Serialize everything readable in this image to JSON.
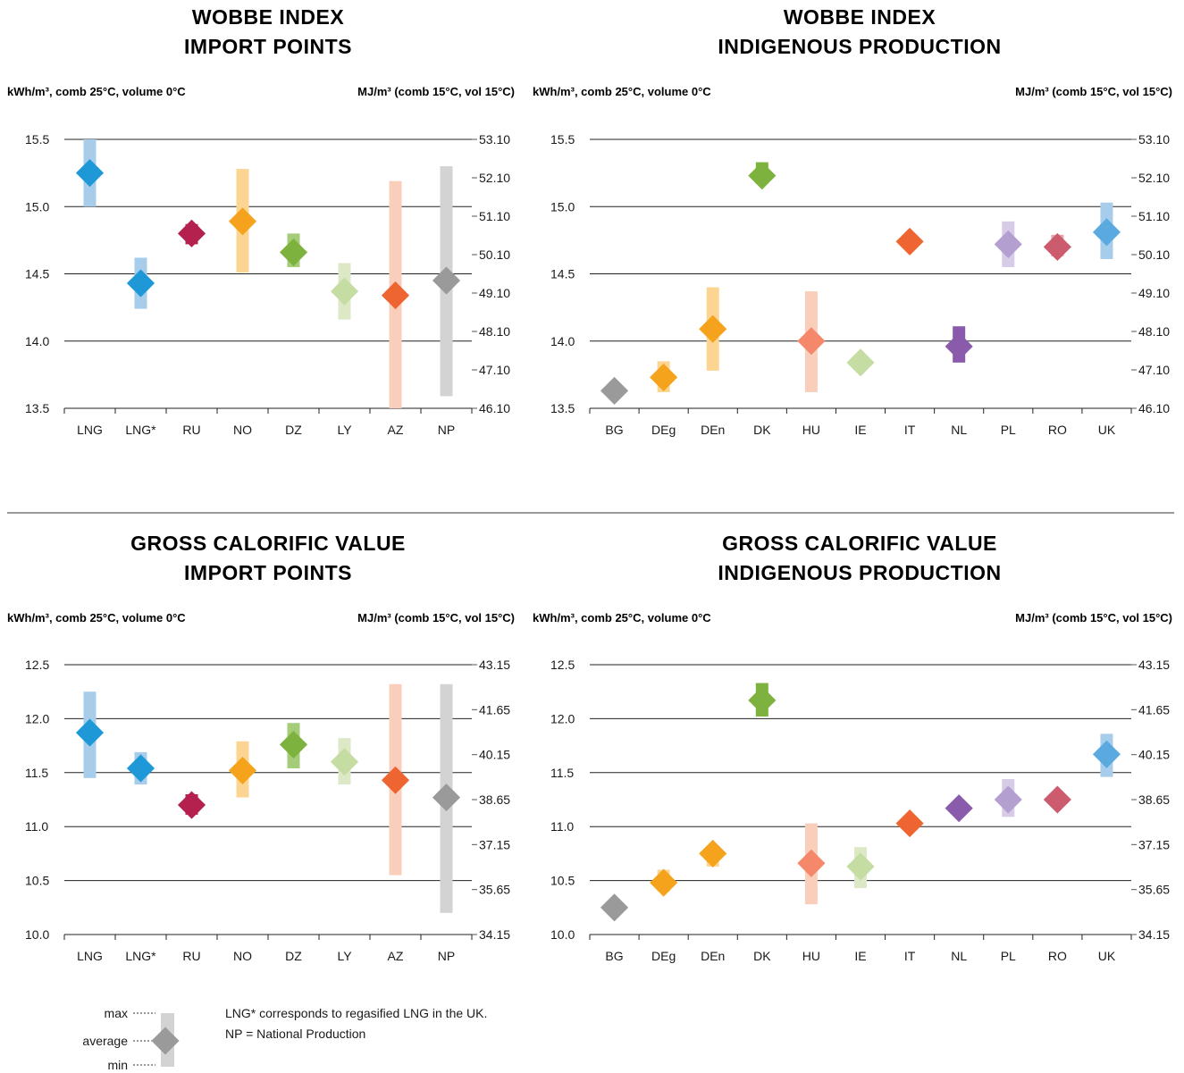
{
  "units": {
    "left": "kWh/m³, comb 25°C, volume 0°C",
    "right": "MJ/m³ (comb 15°C, vol 15°C)"
  },
  "notes": [
    "LNG* corresponds to regasified LNG in the UK.",
    "NP =  National Production"
  ],
  "legend": {
    "max": "max",
    "average": "average",
    "min": "min"
  },
  "chart_data": [
    {
      "type": "range-dot",
      "title": [
        "WOBBE INDEX",
        "IMPORT POINTS"
      ],
      "ylabel": "kWh/m³, comb 25°C, volume 0°C",
      "ylabel_right": "MJ/m³ (comb 15°C, vol 15°C)",
      "ylim": [
        13.5,
        15.5
      ],
      "yticks": [
        "13.5",
        "14.0",
        "14.5",
        "15.0",
        "15.5"
      ],
      "yticks_right": [
        "46.10",
        "47.10",
        "48.10",
        "49.10",
        "50.10",
        "51.10",
        "52.10",
        "53.10"
      ],
      "categories": [
        "LNG",
        "LNG*",
        "RU",
        "NO",
        "DZ",
        "LY",
        "AZ",
        "NP"
      ],
      "min": [
        15.0,
        14.24,
        14.72,
        14.51,
        14.55,
        14.16,
        13.5,
        13.59
      ],
      "average": [
        15.25,
        14.43,
        14.8,
        14.89,
        14.66,
        14.37,
        14.34,
        14.45
      ],
      "max": [
        15.5,
        14.62,
        14.87,
        15.28,
        14.8,
        14.58,
        15.19,
        15.3
      ],
      "colors": [
        "#1e98d6",
        "#1e98d6",
        "#b4214e",
        "#f5a31d",
        "#7eb23f",
        "#c5dca3",
        "#ef6531",
        "#9a9a9a"
      ],
      "bar_colors": [
        "#a7cdeb",
        "#a7cdeb",
        "#b4214e",
        "#fcd592",
        "#a5cc78",
        "#dde9c6",
        "#f9cfbb",
        "#d3d3d3"
      ]
    },
    {
      "type": "range-dot",
      "title": [
        "WOBBE INDEX",
        "INDIGENOUS PRODUCTION"
      ],
      "ylabel": "kWh/m³, comb 25°C, volume 0°C",
      "ylabel_right": "MJ/m³ (comb 15°C, vol 15°C)",
      "ylim": [
        13.5,
        15.5
      ],
      "yticks": [
        "13.5",
        "14.0",
        "14.5",
        "15.0",
        "15.5"
      ],
      "yticks_right": [
        "46.10",
        "47.10",
        "48.10",
        "49.10",
        "50.10",
        "51.10",
        "52.10",
        "53.10"
      ],
      "categories": [
        "BG",
        "DEg",
        "DEn",
        "DK",
        "HU",
        "IE",
        "IT",
        "NL",
        "PL",
        "RO",
        "UK"
      ],
      "min": [
        13.63,
        13.62,
        13.78,
        15.17,
        13.62,
        13.84,
        14.74,
        13.84,
        14.55,
        14.63,
        14.61
      ],
      "average": [
        13.63,
        13.73,
        14.09,
        15.23,
        14.0,
        13.84,
        14.74,
        13.96,
        14.72,
        14.7,
        14.81
      ],
      "max": [
        13.63,
        13.85,
        14.4,
        15.33,
        14.37,
        13.84,
        14.74,
        14.11,
        14.89,
        14.79,
        15.03
      ],
      "colors": [
        "#9a9a9a",
        "#f5a31d",
        "#f5a31d",
        "#7eb23f",
        "#f5876a",
        "#c5dca3",
        "#ef6531",
        "#8a5bab",
        "#b39fd0",
        "#cc5b6e",
        "#5aaae0"
      ],
      "bar_colors": [
        "#d3d3d3",
        "#fcd592",
        "#fcd592",
        "#7eb23f",
        "#f9cfbb",
        "#dde9c6",
        "#ef6531",
        "#8a5bab",
        "#d7cbe8",
        "#e5a4ad",
        "#a7cdeb"
      ]
    },
    {
      "type": "range-dot",
      "title": [
        "GROSS CALORIFIC VALUE",
        "IMPORT POINTS"
      ],
      "ylabel": "kWh/m³, comb 25°C, volume 0°C",
      "ylabel_right": "MJ/m³ (comb 15°C, vol 15°C)",
      "ylim": [
        10.0,
        12.5
      ],
      "yticks": [
        "10.0",
        "10.5",
        "11.0",
        "11.5",
        "12.0",
        "12.5"
      ],
      "yticks_right": [
        "34.15",
        "35.65",
        "37.15",
        "38.65",
        "40.15",
        "41.65",
        "43.15"
      ],
      "categories": [
        "LNG",
        "LNG*",
        "RU",
        "NO",
        "DZ",
        "LY",
        "AZ",
        "NP"
      ],
      "min": [
        11.45,
        11.39,
        11.11,
        11.27,
        11.54,
        11.39,
        10.55,
        10.2
      ],
      "average": [
        11.87,
        11.54,
        11.2,
        11.52,
        11.76,
        11.6,
        11.43,
        11.27
      ],
      "max": [
        12.25,
        11.69,
        11.3,
        11.79,
        11.96,
        11.82,
        12.32,
        12.32
      ],
      "colors": [
        "#1e98d6",
        "#1e98d6",
        "#b4214e",
        "#f5a31d",
        "#7eb23f",
        "#c5dca3",
        "#ef6531",
        "#9a9a9a"
      ],
      "bar_colors": [
        "#a7cdeb",
        "#a7cdeb",
        "#b4214e",
        "#fcd592",
        "#a5cc78",
        "#dde9c6",
        "#f9cfbb",
        "#d3d3d3"
      ]
    },
    {
      "type": "range-dot",
      "title": [
        "GROSS CALORIFIC VALUE",
        "INDIGENOUS PRODUCTION"
      ],
      "ylabel": "kWh/m³, comb 25°C, volume 0°C",
      "ylabel_right": "MJ/m³ (comb 15°C, vol 15°C)",
      "ylim": [
        10.0,
        12.5
      ],
      "yticks": [
        "10.0",
        "10.5",
        "11.0",
        "11.5",
        "12.0",
        "12.5"
      ],
      "yticks_right": [
        "34.15",
        "35.65",
        "37.15",
        "38.65",
        "40.15",
        "41.65",
        "43.15"
      ],
      "categories": [
        "BG",
        "DEg",
        "DEn",
        "DK",
        "HU",
        "IE",
        "IT",
        "NL",
        "PL",
        "RO",
        "UK"
      ],
      "min": [
        10.25,
        10.4,
        10.63,
        12.02,
        10.28,
        10.43,
        11.03,
        11.17,
        11.09,
        11.25,
        11.46
      ],
      "average": [
        10.25,
        10.48,
        10.75,
        12.17,
        10.66,
        10.63,
        11.03,
        11.17,
        11.25,
        11.25,
        11.67
      ],
      "max": [
        10.25,
        10.6,
        10.81,
        12.33,
        11.03,
        10.81,
        11.03,
        11.17,
        11.44,
        11.25,
        11.86
      ],
      "colors": [
        "#9a9a9a",
        "#f5a31d",
        "#f5a31d",
        "#7eb23f",
        "#f5876a",
        "#c5dca3",
        "#ef6531",
        "#8a5bab",
        "#b39fd0",
        "#cc5b6e",
        "#5aaae0"
      ],
      "bar_colors": [
        "#d3d3d3",
        "#fcd592",
        "#fcd592",
        "#7eb23f",
        "#f9cfbb",
        "#dde9c6",
        "#ef6531",
        "#8a5bab",
        "#d7cbe8",
        "#e5a4ad",
        "#a7cdeb"
      ]
    }
  ]
}
